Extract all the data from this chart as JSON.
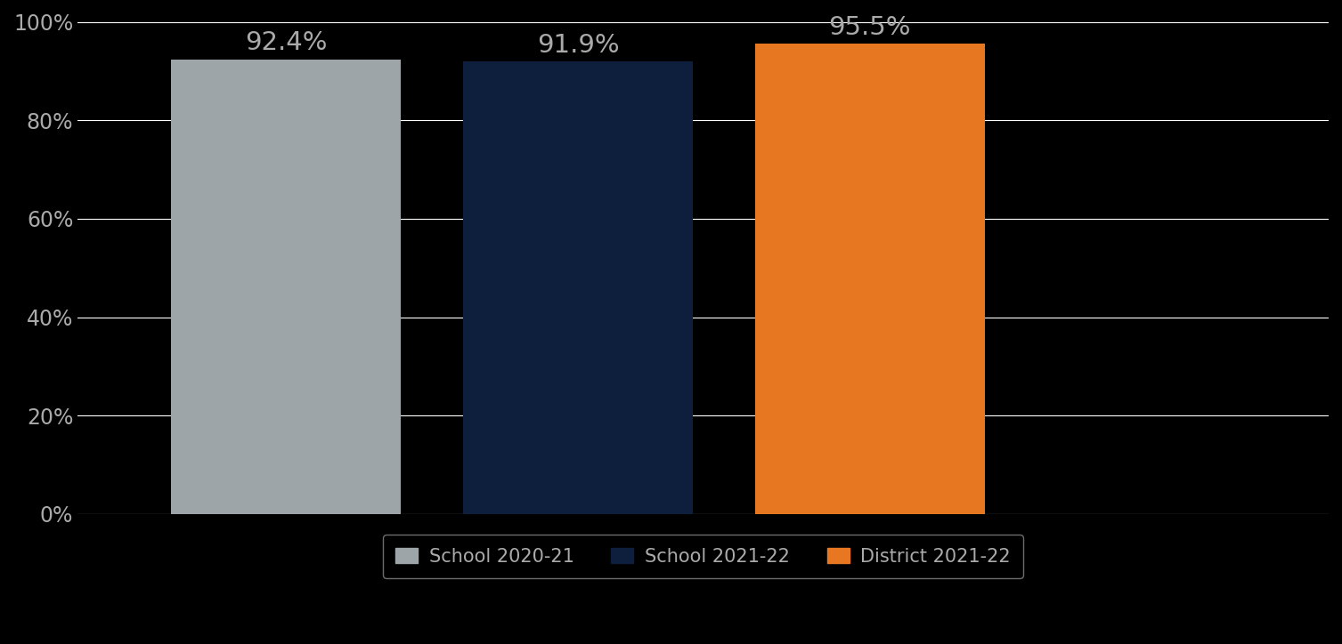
{
  "categories": [
    "School 2020-21",
    "School 2021-22",
    "District 2021-22"
  ],
  "values": [
    92.4,
    91.9,
    95.5
  ],
  "bar_colors": [
    "#9EA5A8",
    "#0D1F3C",
    "#E87722"
  ],
  "background_color": "#000000",
  "plot_bg_color": "#000000",
  "grid_color": "#FFFFFF",
  "tick_label_color": "#AAAAAA",
  "legend_bg_color": "#000000",
  "legend_edge_color": "#888888",
  "legend_text_color": "#AAAAAA",
  "bar_label_color": "#AAAAAA",
  "ylim": [
    0,
    100
  ],
  "yticks": [
    0,
    20,
    40,
    60,
    80,
    100
  ],
  "ytick_labels": [
    "0%",
    "20%",
    "40%",
    "60%",
    "80%",
    "100%"
  ],
  "bar_width": 0.55,
  "x_positions": [
    1.0,
    1.7,
    2.4
  ],
  "xlim": [
    0.5,
    3.5
  ],
  "tick_fontsize": 17,
  "legend_fontsize": 15,
  "bar_label_fontsize": 21
}
